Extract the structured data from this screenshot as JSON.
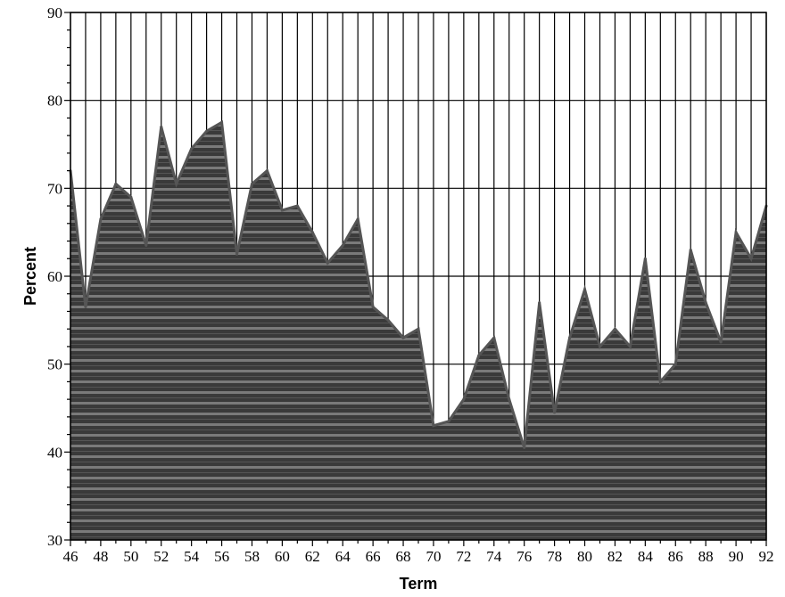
{
  "chart_data": {
    "type": "area",
    "title": "",
    "xlabel": "Term",
    "ylabel": "Percent",
    "xlim": [
      46,
      92
    ],
    "ylim": [
      30,
      90
    ],
    "x_ticks": [
      46,
      48,
      50,
      52,
      54,
      56,
      58,
      60,
      62,
      64,
      66,
      68,
      70,
      72,
      74,
      76,
      78,
      80,
      82,
      84,
      86,
      88,
      90,
      92
    ],
    "y_ticks": [
      30,
      40,
      50,
      60,
      70,
      80,
      90
    ],
    "grid": {
      "vertical_every_term": true,
      "horizontal_every": 10
    },
    "fill_color": "#3a3a3a",
    "line_color": "#555555",
    "series": [
      {
        "x": [
          46,
          47,
          48,
          49,
          50,
          51,
          52,
          53,
          54,
          55,
          56,
          57,
          58,
          59,
          60,
          61,
          62,
          63,
          64,
          65,
          66,
          67,
          68,
          69,
          70,
          71,
          72,
          73,
          74,
          75,
          76,
          77,
          78,
          79,
          80,
          81,
          82,
          83,
          84,
          85,
          86,
          87,
          88,
          89,
          90,
          91,
          92
        ],
        "values": [
          72,
          56.5,
          66.5,
          70.5,
          69,
          63.5,
          77,
          70.5,
          74.5,
          76.5,
          77.5,
          62.5,
          70.5,
          72,
          67.5,
          68,
          65,
          61.5,
          63.5,
          66.5,
          56.5,
          55,
          53,
          54,
          43,
          43.5,
          46,
          51,
          53,
          46,
          40.5,
          57,
          44.5,
          53,
          58.5,
          52,
          54,
          52,
          62,
          48,
          50,
          63,
          57,
          52.5,
          65,
          62,
          68
        ]
      }
    ]
  }
}
